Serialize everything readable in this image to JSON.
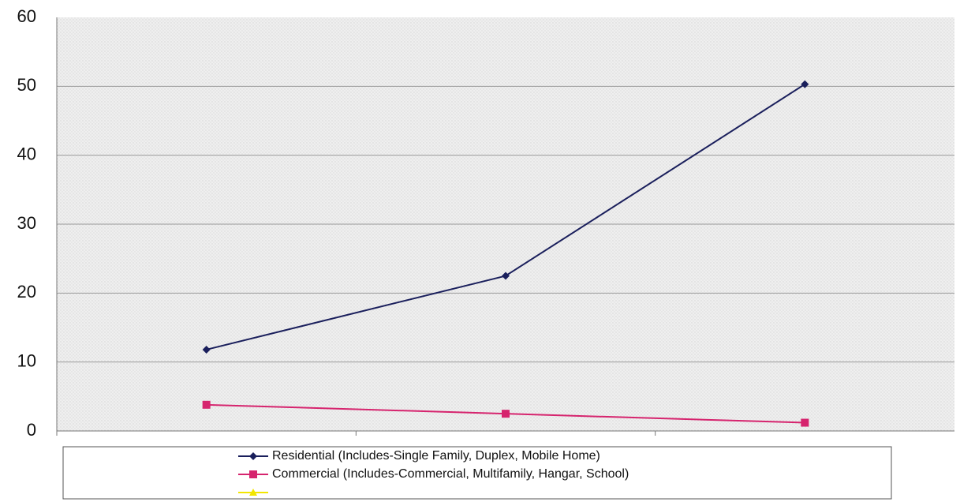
{
  "chart_data": {
    "type": "line",
    "categories": [
      null,
      null,
      null
    ],
    "series": [
      {
        "name": "Residential (Includes-Single Family, Duplex, Mobile Home)",
        "color": "#1a1f5c",
        "marker": "diamond",
        "values": [
          11.8,
          22.5,
          50.3
        ]
      },
      {
        "name": "Commercial (Includes-Commercial, Multifamily, Hangar, School)",
        "color": "#d6246e",
        "marker": "square",
        "values": [
          3.8,
          2.5,
          1.2
        ]
      },
      {
        "color": "#f2e600",
        "marker": "triangle",
        "values": [
          null,
          null,
          null
        ]
      }
    ],
    "ylim": [
      0,
      60
    ],
    "yticks": [
      0,
      10,
      20,
      30,
      40,
      50,
      60
    ],
    "grid": true
  }
}
